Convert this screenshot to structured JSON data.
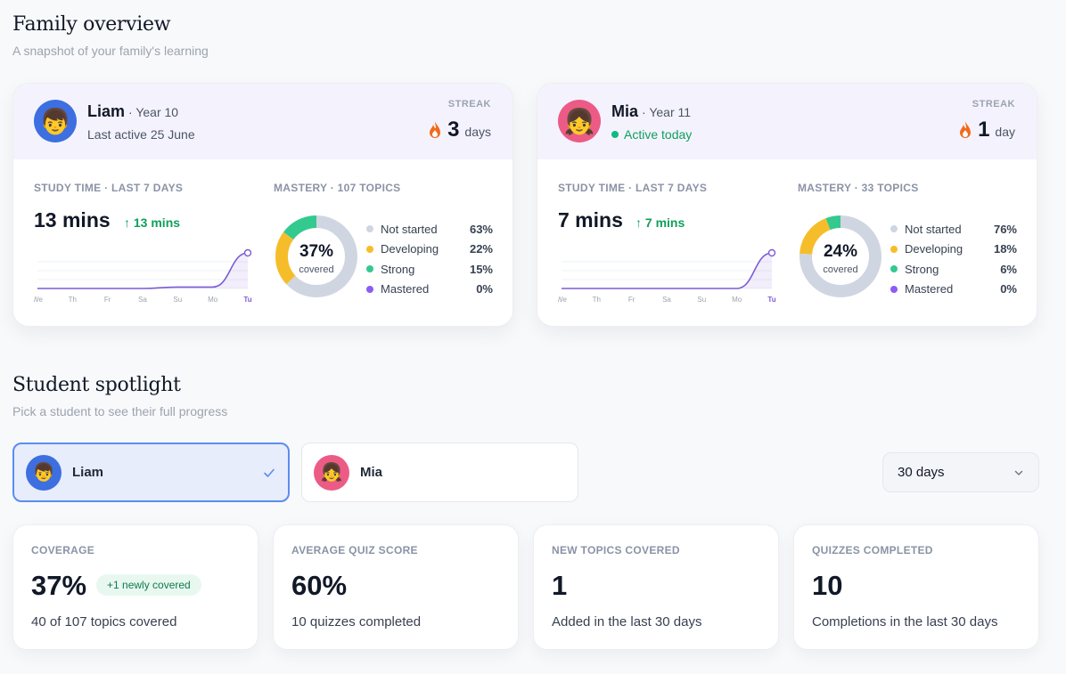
{
  "overview": {
    "title": "Family overview",
    "subtitle": "A snapshot of your family's learning"
  },
  "students": [
    {
      "name": "Liam",
      "year": "· Year 10",
      "activity": "Last active 25 June",
      "streak_label": "STREAK",
      "streak_num": "3",
      "streak_unit": "days",
      "study_label": "STUDY TIME · LAST 7 DAYS",
      "study_value": "13 mins",
      "study_delta": "↑ 13 mins",
      "mastery_label": "MASTERY · 107 TOPICS",
      "covered_pct": "37%",
      "covered_label": "covered",
      "days": [
        "We",
        "Th",
        "Fr",
        "Sa",
        "Su",
        "Mo",
        "Tu"
      ],
      "daily_minutes": [
        0,
        0,
        0,
        0,
        0.5,
        0.5,
        13
      ],
      "mastery": [
        {
          "label": "Not started",
          "pct": "63%",
          "value": 63,
          "color": "#cfd6e2"
        },
        {
          "label": "Developing",
          "pct": "22%",
          "value": 22,
          "color": "#f6bd2b"
        },
        {
          "label": "Strong",
          "pct": "15%",
          "value": 15,
          "color": "#34c98e"
        },
        {
          "label": "Mastered",
          "pct": "0%",
          "value": 0,
          "color": "#8b5cf6"
        }
      ]
    },
    {
      "name": "Mia",
      "year": "· Year 11",
      "activity": "Active today",
      "streak_label": "STREAK",
      "streak_num": "1",
      "streak_unit": "day",
      "study_label": "STUDY TIME · LAST 7 DAYS",
      "study_value": "7 mins",
      "study_delta": "↑ 7 mins",
      "mastery_label": "MASTERY · 33 TOPICS",
      "covered_pct": "24%",
      "covered_label": "covered",
      "days": [
        "We",
        "Th",
        "Fr",
        "Sa",
        "Su",
        "Mo",
        "Tu"
      ],
      "daily_minutes": [
        0,
        0,
        0,
        0,
        0,
        0,
        7
      ],
      "mastery": [
        {
          "label": "Not started",
          "pct": "76%",
          "value": 76,
          "color": "#cfd6e2"
        },
        {
          "label": "Developing",
          "pct": "18%",
          "value": 18,
          "color": "#f6bd2b"
        },
        {
          "label": "Strong",
          "pct": "6%",
          "value": 6,
          "color": "#34c98e"
        },
        {
          "label": "Mastered",
          "pct": "0%",
          "value": 0,
          "color": "#8b5cf6"
        }
      ]
    }
  ],
  "spotlight": {
    "title": "Student spotlight",
    "subtitle": "Pick a student to see their full progress",
    "options": [
      "Liam",
      "Mia"
    ],
    "selected": "Liam",
    "range": "30 days"
  },
  "stats": [
    {
      "label": "COVERAGE",
      "value": "37%",
      "badge": "+1 newly covered",
      "desc": "40 of 107 topics covered"
    },
    {
      "label": "AVERAGE QUIZ SCORE",
      "value": "60%",
      "desc": "10 quizzes completed"
    },
    {
      "label": "NEW TOPICS COVERED",
      "value": "1",
      "desc": "Added in the last 30 days"
    },
    {
      "label": "QUIZZES COMPLETED",
      "value": "10",
      "desc": "Completions in the last 30 days"
    }
  ],
  "icons": {
    "avatar_boy": "boy-emoji",
    "avatar_girl": "girl-emoji",
    "streak": "flame-icon",
    "selected": "check-icon",
    "dropdown": "chevron-down-icon"
  },
  "colors": {
    "accent": "#7c5cd6",
    "green": "#0f9f5b",
    "selected_border": "#5b8def"
  }
}
